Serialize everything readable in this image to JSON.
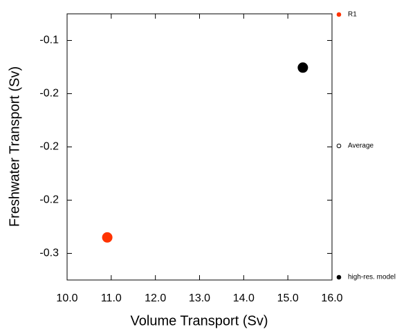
{
  "chart_data": {
    "type": "scatter",
    "xlabel": "Volume Transport (Sv)",
    "ylabel": "Freshwater Transport (Sv)",
    "xlim": [
      10,
      16
    ],
    "xticks": [
      {
        "value": 10,
        "label": "10.0"
      },
      {
        "value": 11,
        "label": "11.0"
      },
      {
        "value": 12,
        "label": "12.0"
      },
      {
        "value": 13,
        "label": "13.0"
      },
      {
        "value": 14,
        "label": "14.0"
      },
      {
        "value": 15,
        "label": "15.0"
      },
      {
        "value": 16,
        "label": "16.0"
      }
    ],
    "ylim": [
      -0.325,
      -0.075
    ],
    "yticks": [
      {
        "value": -0.1,
        "label": "-0.1"
      },
      {
        "value": -0.15,
        "label": "-0.2"
      },
      {
        "value": -0.2,
        "label": "-0.2"
      },
      {
        "value": -0.25,
        "label": "-0.2"
      },
      {
        "value": -0.3,
        "label": "-0.3"
      }
    ],
    "series": [
      {
        "name": "R1",
        "color": "#ff3300",
        "filled": true,
        "x": [
          10.91
        ],
        "values": [
          -0.285
        ]
      },
      {
        "name": "Average",
        "color": "#000000",
        "filled": false,
        "x": [],
        "values": []
      },
      {
        "name": "high-res. model",
        "color": "#000000",
        "filled": true,
        "x": [
          15.34
        ],
        "values": [
          -0.1255
        ]
      }
    ]
  }
}
